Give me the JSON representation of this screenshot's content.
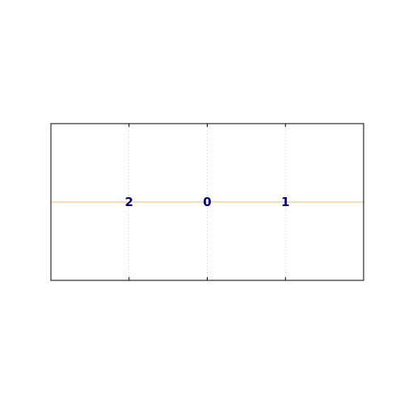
{
  "chart_data": {
    "type": "scatter",
    "x": [
      1,
      2,
      3
    ],
    "y": [
      0,
      0,
      0
    ],
    "labels": [
      "2",
      "0",
      "1"
    ],
    "xlim": [
      0,
      4
    ],
    "ylim": [
      -1,
      1
    ],
    "grid": "vertical-dotted",
    "title": "",
    "xlabel": "",
    "ylabel": "",
    "colors": {
      "label": "#000080",
      "edge": "#f5deb3",
      "grid": "#b0b0b0",
      "frame": "#000000"
    }
  }
}
